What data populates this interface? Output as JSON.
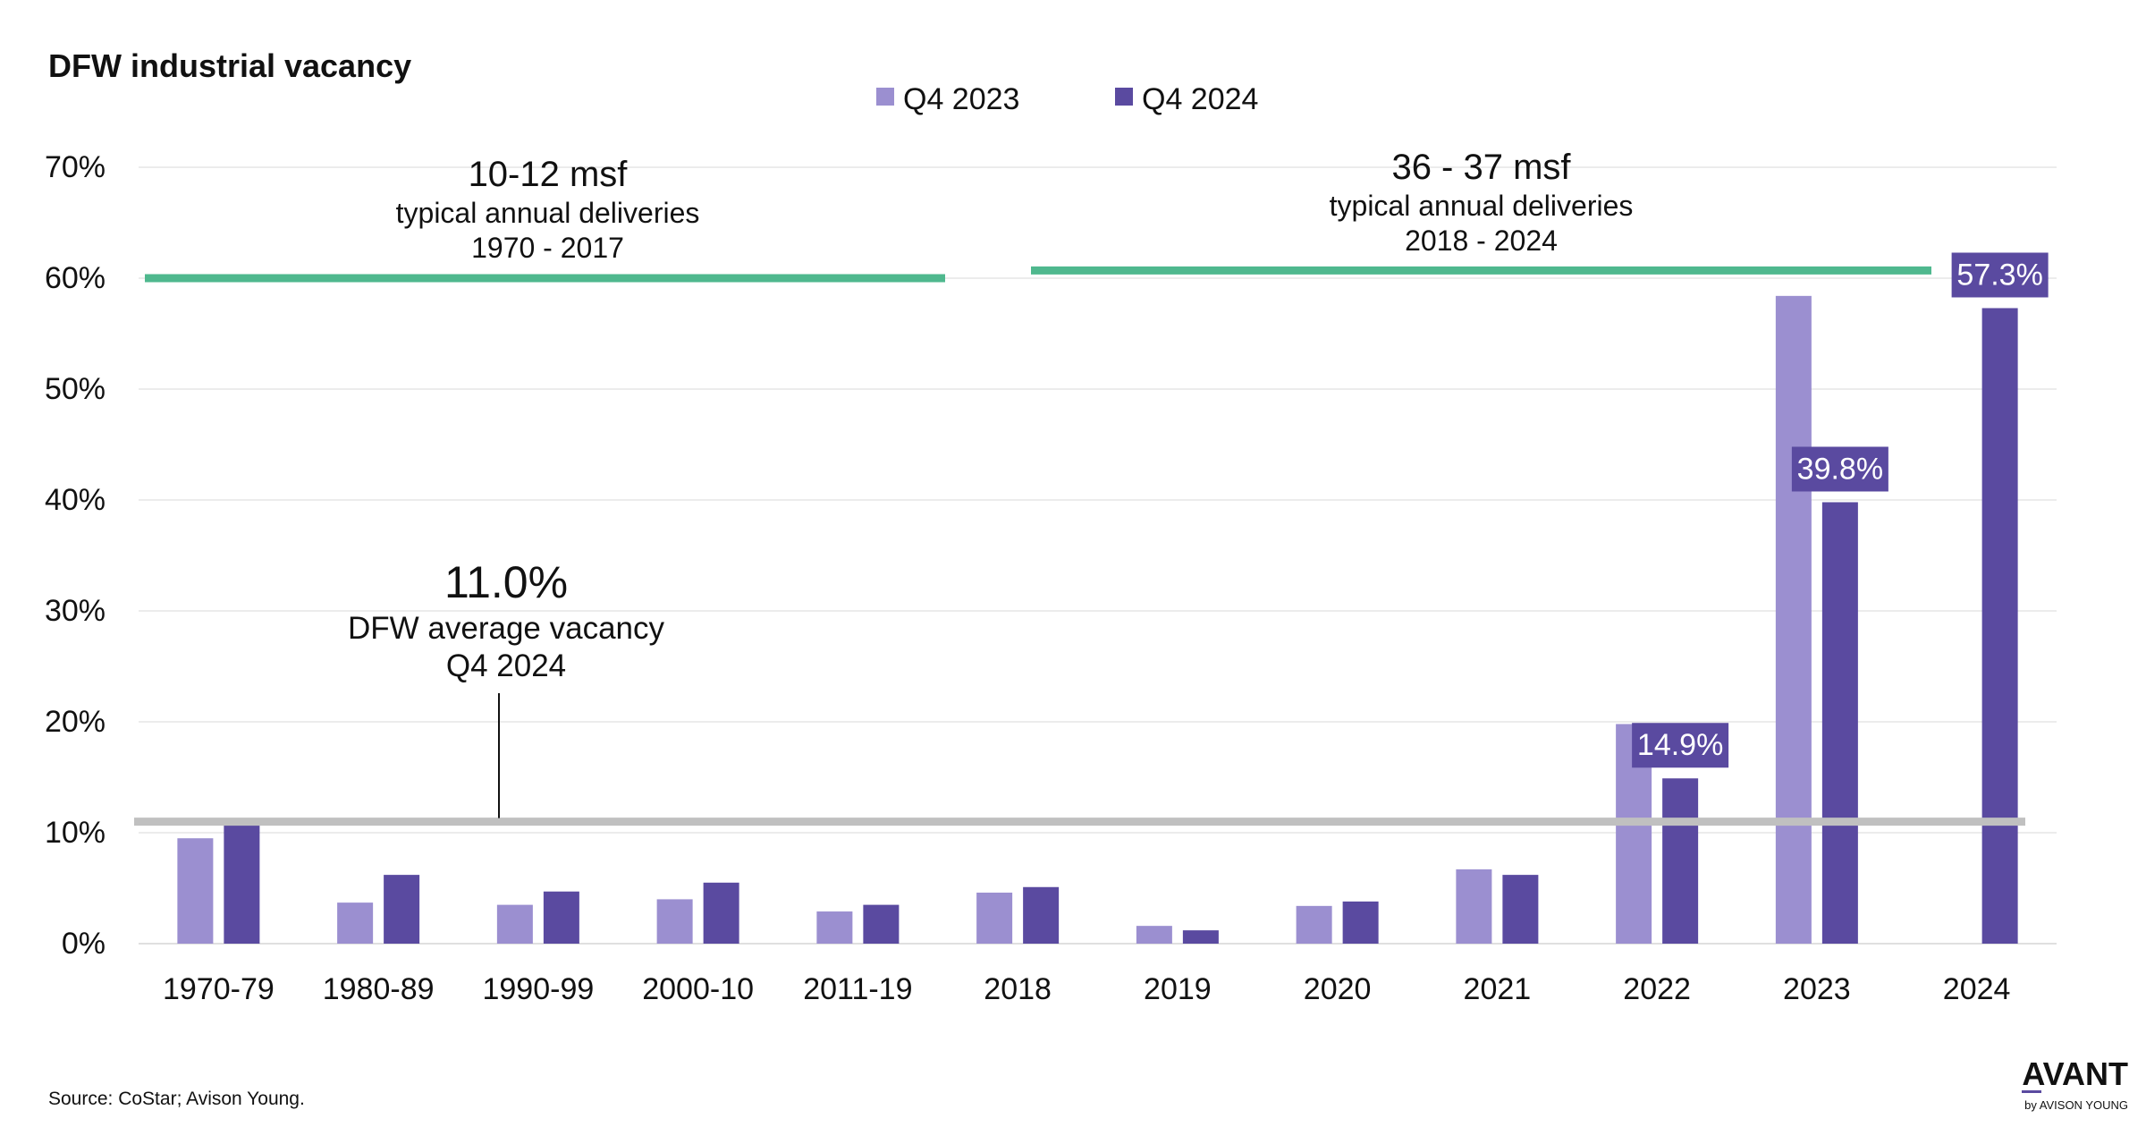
{
  "chart_data": {
    "type": "bar",
    "title": "DFW industrial vacancy",
    "xlabel": "",
    "ylabel": "",
    "ylim": [
      0,
      70
    ],
    "y_ticks": [
      "0%",
      "10%",
      "20%",
      "30%",
      "40%",
      "50%",
      "60%",
      "70%"
    ],
    "grid": true,
    "legend_position": "top-center",
    "categories": [
      "1970-79",
      "1980-89",
      "1990-99",
      "2000-10",
      "2011-19",
      "2018",
      "2019",
      "2020",
      "2021",
      "2022",
      "2023",
      "2024"
    ],
    "series": [
      {
        "name": "Q4 2023",
        "color": "#9b8fd0",
        "values": [
          9.5,
          3.7,
          3.5,
          4.0,
          2.9,
          4.6,
          1.6,
          3.4,
          6.7,
          19.8,
          58.4,
          null
        ]
      },
      {
        "name": "Q4 2024",
        "color": "#5a4aa0",
        "values": [
          10.9,
          6.2,
          4.7,
          5.5,
          3.5,
          5.1,
          1.2,
          3.8,
          6.2,
          14.9,
          39.8,
          57.3
        ]
      }
    ],
    "data_labels": [
      {
        "series": "Q4 2024",
        "category": "2022",
        "text": "14.9%"
      },
      {
        "series": "Q4 2024",
        "category": "2023",
        "text": "39.8%"
      },
      {
        "series": "Q4 2024",
        "category": "2024",
        "text": "57.3%"
      }
    ],
    "average_line": {
      "value": 11.0,
      "color": "#c0c0c0",
      "value_label": "11.0%",
      "label_line1": "DFW average vacancy",
      "label_line2": "Q4 2024"
    },
    "period_annotations": [
      {
        "value": 60.0,
        "start_category": "1970-79",
        "end_category": "2011-19",
        "headline": "10-12 msf",
        "line1": "typical annual deliveries",
        "line2": "1970 - 2017",
        "color": "#4fb88e"
      },
      {
        "value": 60.7,
        "start_category": "2018",
        "end_category": "2024",
        "headline": "36 - 37 msf",
        "line1": "typical annual deliveries",
        "line2": "2018 - 2024",
        "color": "#4fb88e"
      }
    ],
    "source": "Source: CoStar; Avison Young.",
    "logo": {
      "main": "AVANT",
      "sub": "by AVISON YOUNG"
    }
  }
}
